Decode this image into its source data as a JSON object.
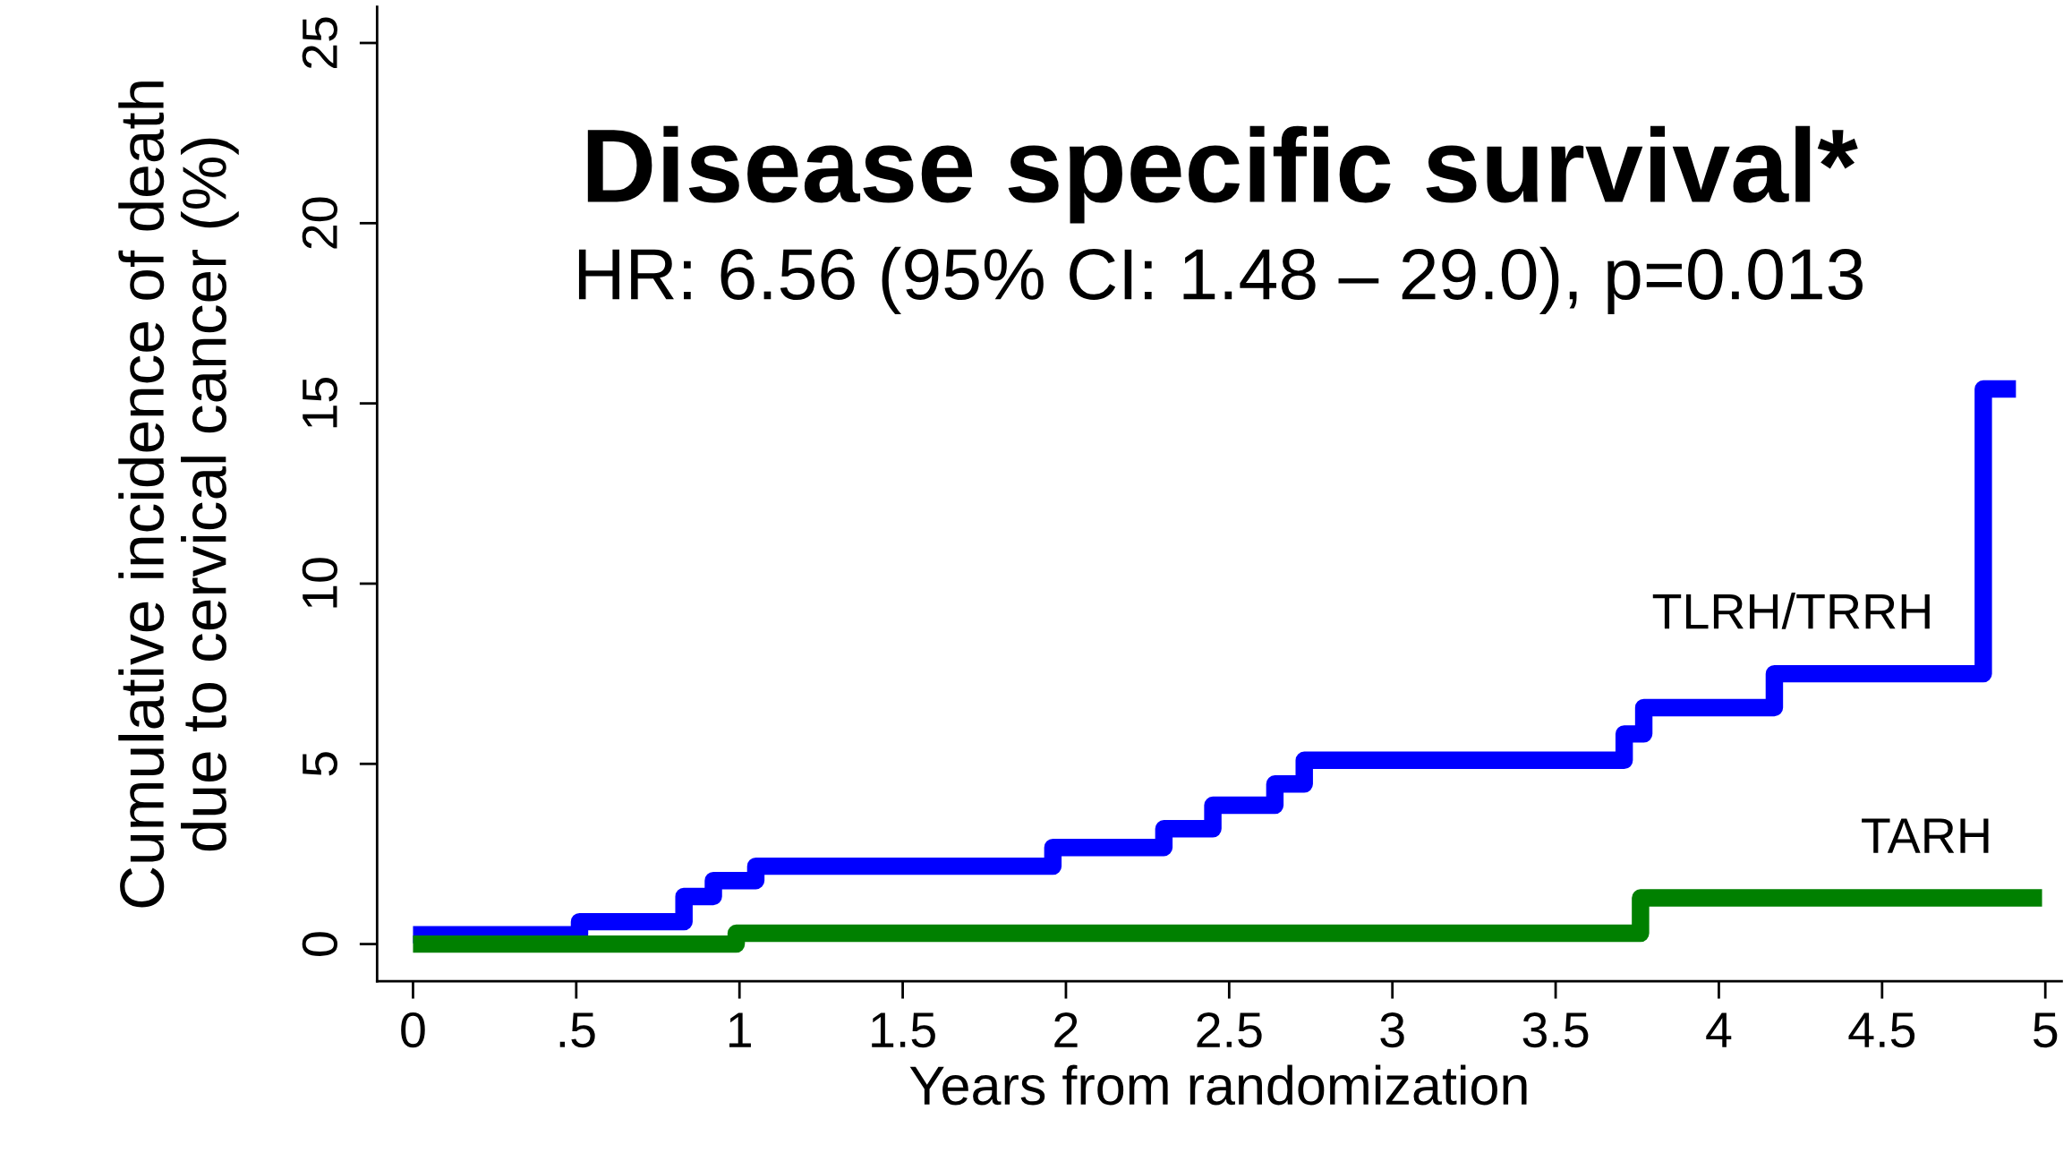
{
  "chart_data": {
    "type": "step",
    "title": "Disease specific survival*",
    "subtitle": "HR: 6.56 (95% CI: 1.48 – 29.0), p=0.013",
    "xlabel": "Years from randomization",
    "ylabel": "Cumulative incidence of death\ndue to cervical cancer (%)",
    "series": [
      {
        "name": "TLRH/TRRH",
        "color": "#0000ff",
        "x": [
          0,
          0.51,
          0.83,
          0.92,
          1.05,
          1.96,
          2.3,
          2.45,
          2.64,
          2.73,
          3.71,
          3.77,
          4.17,
          4.81,
          4.91
        ],
        "values": [
          0.26,
          0.62,
          1.32,
          1.76,
          2.16,
          2.68,
          3.2,
          3.85,
          4.44,
          5.1,
          5.83,
          6.56,
          7.5,
          15.4,
          15.4
        ]
      },
      {
        "name": "TARH",
        "color": "#008000",
        "x": [
          0,
          0.99,
          3.76,
          4.99
        ],
        "values": [
          0,
          0.3,
          1.28,
          1.28
        ]
      }
    ],
    "xlim": [
      -0.11,
      5.05
    ],
    "xticks": [
      0,
      {
        "value": 0.5,
        "label": ".5"
      },
      1,
      1.5,
      2,
      2.5,
      3,
      3.5,
      4,
      4.5,
      5
    ],
    "ylim": [
      -1.03,
      26
    ],
    "yticks": [
      0,
      5,
      10,
      15,
      20,
      25
    ],
    "grid": false,
    "legend": false
  }
}
